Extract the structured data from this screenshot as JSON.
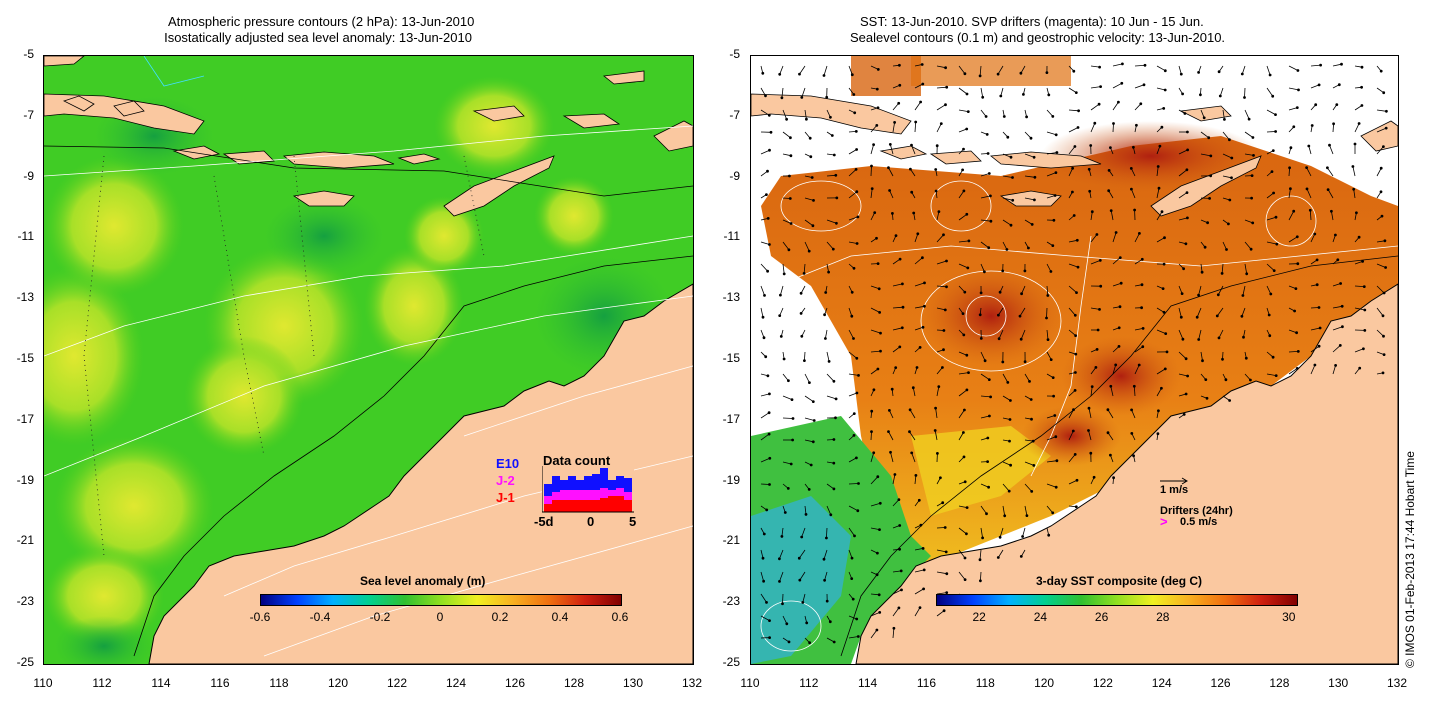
{
  "left": {
    "title1": "Atmospheric pressure contours (2 hPa): 13-Jun-2010",
    "title2": "Isostatically adjusted sea level anomaly: 13-Jun-2010",
    "colorbar_title": "Sea level anomaly (m)",
    "colorbar_ticks": [
      "-0.6",
      "-0.4",
      "-0.2",
      "0",
      "0.2",
      "0.4",
      "0.6"
    ],
    "inset": {
      "title": "Data count",
      "series_labels": [
        "E10",
        "J-2",
        "J-1"
      ],
      "series_colors": [
        "#1010ff",
        "#ff10ff",
        "#ff0000"
      ],
      "x_ticks": [
        "-5d",
        "0",
        "5"
      ]
    }
  },
  "right": {
    "title1": "SST: 13-Jun-2010. SVP drifters (magenta): 10 Jun - 15 Jun.",
    "title2": "Sealevel contours (0.1 m) and geostrophic velocity: 13-Jun-2010.",
    "colorbar_title": "3-day SST composite (deg C)",
    "colorbar_ticks": [
      "22",
      "24",
      "26",
      "28",
      "30"
    ],
    "velocity_legend": "1 m/s",
    "drifters_label": "Drifters (24hr)",
    "drifters_speed": "0.5 m/s"
  },
  "y_ticks": [
    "-5",
    "-7",
    "-9",
    "-11",
    "-13",
    "-15",
    "-17",
    "-19",
    "-21",
    "-23",
    "-25"
  ],
  "x_ticks": [
    "110",
    "112",
    "114",
    "116",
    "118",
    "120",
    "122",
    "124",
    "126",
    "128",
    "130",
    "132"
  ],
  "copyright": "© IMOS 01-Feb-2013 17:44 Hobart Time",
  "colors": {
    "land": "#fac8a0",
    "ocean_green": "#33cc22",
    "sst_orange": "#e07010"
  }
}
